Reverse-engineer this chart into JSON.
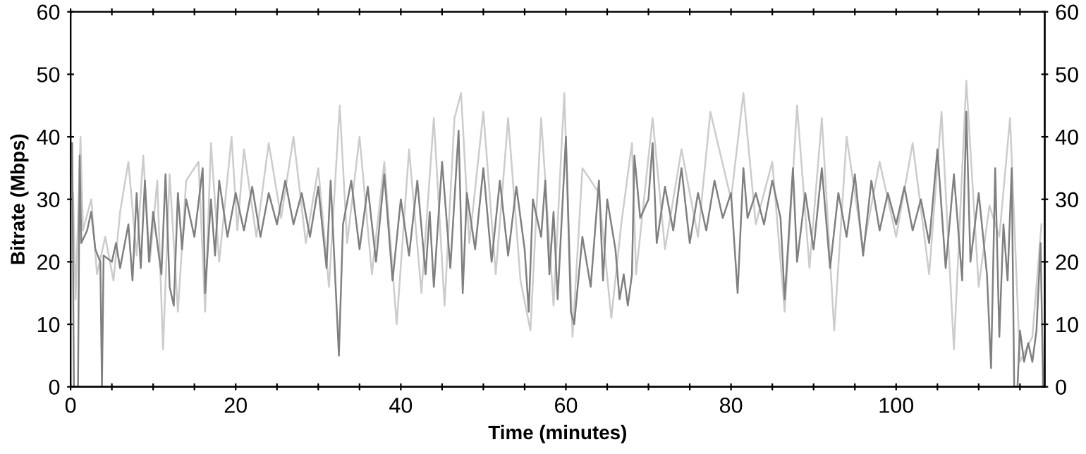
{
  "chart_data": {
    "type": "line",
    "xlabel": "Time (minutes)",
    "ylabel": "Bitrate (Mbps)",
    "xlim": [
      0,
      118
    ],
    "ylim": [
      0,
      60
    ],
    "y2lim": [
      0,
      60
    ],
    "xticks": [
      0,
      {
        "value": 5,
        "label": null
      },
      {
        "value": 10,
        "label": null
      },
      {
        "value": 15,
        "label": null
      },
      20,
      {
        "value": 25,
        "label": null
      },
      {
        "value": 30,
        "label": null
      },
      {
        "value": 35,
        "label": null
      },
      40,
      {
        "value": 45,
        "label": null
      },
      {
        "value": 50,
        "label": null
      },
      {
        "value": 55,
        "label": null
      },
      60,
      {
        "value": 65,
        "label": null
      },
      {
        "value": 70,
        "label": null
      },
      {
        "value": 75,
        "label": null
      },
      80,
      {
        "value": 85,
        "label": null
      },
      {
        "value": 90,
        "label": null
      },
      {
        "value": 95,
        "label": null
      },
      100,
      {
        "value": 105,
        "label": null
      },
      {
        "value": 110,
        "label": null
      },
      {
        "value": 115,
        "label": null
      }
    ],
    "yticks": [
      0,
      10,
      20,
      30,
      40,
      50,
      60
    ],
    "y2ticks": [
      0,
      10,
      20,
      30,
      40,
      50,
      60
    ],
    "grid": false,
    "legend": false,
    "marker": "none",
    "line_style": "solid",
    "series": [
      {
        "color": "#cccccc",
        "x": [
          0.3,
          0.6,
          1.2,
          1.5,
          2.5,
          3.2,
          4.2,
          5.2,
          6,
          7,
          8,
          8.8,
          9.6,
          10.5,
          11.2,
          12,
          13,
          14,
          15.5,
          16.3,
          17,
          18,
          19.5,
          20.2,
          21,
          22.5,
          24,
          25.5,
          27,
          28.5,
          30,
          31.3,
          32.6,
          33.5,
          35,
          36.5,
          38,
          39.5,
          41,
          42.5,
          44,
          45.3,
          46.5,
          47.3,
          48.3,
          50,
          51.5,
          53,
          54.5,
          55.7,
          57,
          58.5,
          59.8,
          60.8,
          62,
          64,
          65.5,
          66.7,
          68,
          68.5,
          70.5,
          72,
          74,
          76,
          77.5,
          80,
          81.5,
          83,
          85,
          86.5,
          88,
          89.5,
          91,
          92.5,
          94,
          96,
          98,
          100,
          102,
          104,
          105.5,
          107,
          108.5,
          110,
          111.3,
          112.5,
          113.8,
          115,
          116.5,
          117.6
        ],
        "values": [
          31,
          14,
          40,
          25,
          30,
          18,
          24,
          17,
          28,
          36,
          21,
          37,
          20,
          33,
          6,
          34,
          12,
          33,
          36,
          12,
          39,
          20,
          40,
          25,
          38,
          24,
          39,
          27,
          40,
          23,
          35,
          16,
          45,
          23,
          40,
          18,
          36,
          10,
          38,
          15,
          43,
          13,
          43,
          47,
          23,
          44,
          18,
          43,
          17,
          9,
          43,
          13,
          47,
          8,
          35,
          31,
          11,
          26,
          39,
          18,
          43,
          22,
          38,
          24,
          44,
          30,
          47,
          26,
          36,
          12,
          45,
          19,
          43,
          9,
          40,
          22,
          36,
          24,
          39,
          18,
          44,
          6,
          49,
          16,
          29,
          24,
          43,
          4,
          8,
          26
        ]
      },
      {
        "color": "#808080",
        "x": [
          0.2,
          0.4,
          0.9,
          1.1,
          1.3,
          2,
          2.5,
          3,
          3.6,
          3.8,
          4,
          5,
          5.5,
          6,
          7,
          7.5,
          8,
          8.5,
          9,
          9.5,
          10,
          11,
          11.5,
          12,
          12.5,
          13,
          13.5,
          14,
          15,
          16,
          16.3,
          17,
          17.5,
          18,
          19,
          20,
          21,
          22,
          23,
          24,
          25,
          26,
          27,
          28,
          29,
          30,
          31,
          31.5,
          32.5,
          33,
          34,
          35,
          36,
          37,
          38,
          39,
          40,
          41,
          42,
          43,
          43.5,
          44,
          45,
          46,
          47,
          47.5,
          48,
          49,
          50,
          51,
          52,
          53,
          54,
          55,
          55.5,
          56,
          57,
          57.5,
          58,
          58.5,
          59,
          60,
          60.6,
          61,
          62,
          63,
          64,
          64.5,
          65,
          66,
          66.5,
          67,
          67.5,
          68,
          68.3,
          69,
          70,
          70.5,
          71,
          72,
          73,
          74,
          75,
          76,
          77,
          78,
          79,
          80,
          80.8,
          81.5,
          82,
          83,
          84,
          85,
          86,
          86.5,
          87.5,
          88,
          89,
          90,
          91,
          92,
          93,
          94,
          95,
          96,
          97,
          98,
          99,
          100,
          101,
          102,
          103,
          104,
          105,
          106,
          107,
          108,
          108.5,
          109,
          110,
          111,
          111.5,
          112,
          112.5,
          113,
          113.5,
          114,
          114.3,
          114.7,
          115,
          115.5,
          116,
          116.5,
          117,
          117.5,
          117.8
        ],
        "values": [
          39,
          0,
          0,
          37,
          23,
          25,
          28,
          22,
          20,
          0,
          21,
          20,
          23,
          19,
          26,
          17,
          31,
          19,
          33,
          20,
          28,
          18,
          34,
          16,
          13,
          31,
          22,
          30,
          24,
          35,
          15,
          30,
          21,
          33,
          24,
          31,
          25,
          32,
          24,
          31,
          26,
          33,
          26,
          31,
          24,
          32,
          19,
          33,
          5,
          26,
          33,
          22,
          32,
          20,
          34,
          17,
          30,
          21,
          33,
          18,
          28,
          16,
          36,
          19,
          41,
          15,
          31,
          22,
          35,
          20,
          33,
          21,
          32,
          22,
          12,
          30,
          24,
          33,
          18,
          28,
          14,
          40,
          12,
          10,
          24,
          16,
          33,
          17,
          30,
          22,
          14,
          18,
          13,
          18,
          37,
          27,
          30,
          39,
          23,
          32,
          25,
          35,
          23,
          31,
          25,
          33,
          27,
          31,
          15,
          35,
          27,
          31,
          26,
          33,
          27,
          14,
          35,
          20,
          31,
          22,
          35,
          19,
          31,
          24,
          34,
          21,
          33,
          25,
          31,
          26,
          32,
          25,
          30,
          23,
          38,
          19,
          34,
          17,
          44,
          20,
          31,
          18,
          3,
          35,
          8,
          26,
          17,
          35,
          0,
          0,
          9,
          4,
          7,
          4,
          9,
          23,
          0
        ]
      }
    ]
  }
}
